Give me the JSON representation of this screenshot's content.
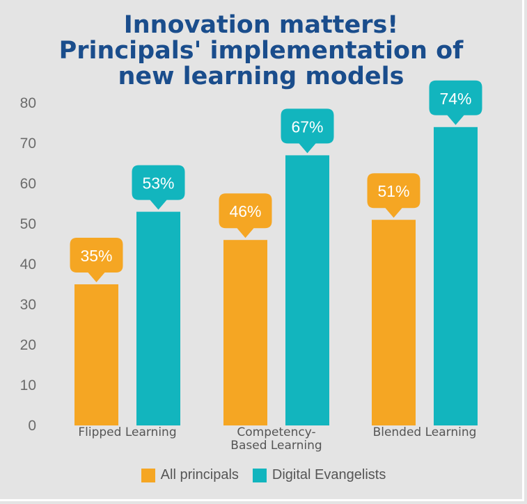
{
  "title": {
    "line1": "Innovation matters!",
    "line2": "Principals' implementation of",
    "line3": "new learning models"
  },
  "colors": {
    "all_principals": "#f5a623",
    "digital_evangelists": "#12b5be",
    "title": "#1a4d8c",
    "axis_text": "#6b6b6b"
  },
  "chart_data": {
    "type": "bar",
    "title": "Innovation matters! Principals' implementation of new learning models",
    "categories": [
      [
        "Flipped Learning"
      ],
      [
        "Competency-",
        "Based Learning"
      ],
      [
        "Blended Learning"
      ]
    ],
    "series": [
      {
        "name": "All principals",
        "values": [
          35,
          46,
          51
        ],
        "labels": [
          "35%",
          "46%",
          "51%"
        ]
      },
      {
        "name": "Digital Evangelists",
        "values": [
          53,
          67,
          74
        ],
        "labels": [
          "53%",
          "67%",
          "74%"
        ]
      }
    ],
    "ylim": [
      0,
      80
    ],
    "yticks": [
      0,
      10,
      20,
      30,
      40,
      50,
      60,
      70,
      80
    ],
    "legend": "bottom",
    "grid": false
  }
}
